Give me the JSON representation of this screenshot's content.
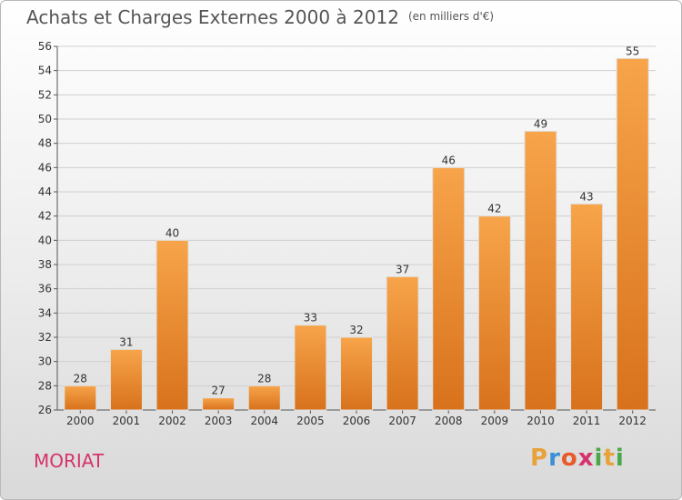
{
  "header": {
    "title": "Achats et Charges Externes 2000 à 2012",
    "unit": "(en milliers d'€)"
  },
  "footer": {
    "commune": "MORIAT",
    "logo_letters": [
      "P",
      "r",
      "o",
      "x",
      "i",
      "t",
      "i"
    ],
    "logo_colors": [
      "#e8a23a",
      "#3a8fd6",
      "#e85a2a",
      "#d6336c",
      "#4aa84a",
      "#e8a23a",
      "#4aa84a"
    ],
    "commune_color": "#d6336c"
  },
  "chart_data": {
    "type": "bar",
    "categories": [
      "2000",
      "2001",
      "2002",
      "2003",
      "2004",
      "2005",
      "2006",
      "2007",
      "2008",
      "2009",
      "2010",
      "2011",
      "2012"
    ],
    "values": [
      28,
      31,
      40,
      27,
      28,
      33,
      32,
      37,
      46,
      42,
      49,
      43,
      55
    ],
    "title": "Achats et Charges Externes 2000 à 2012",
    "ylim": [
      26,
      56
    ],
    "yticks": [
      26,
      28,
      30,
      32,
      34,
      36,
      38,
      40,
      42,
      44,
      46,
      48,
      50,
      52,
      54,
      56
    ],
    "grid": true,
    "bar_color": "#f0902a"
  }
}
